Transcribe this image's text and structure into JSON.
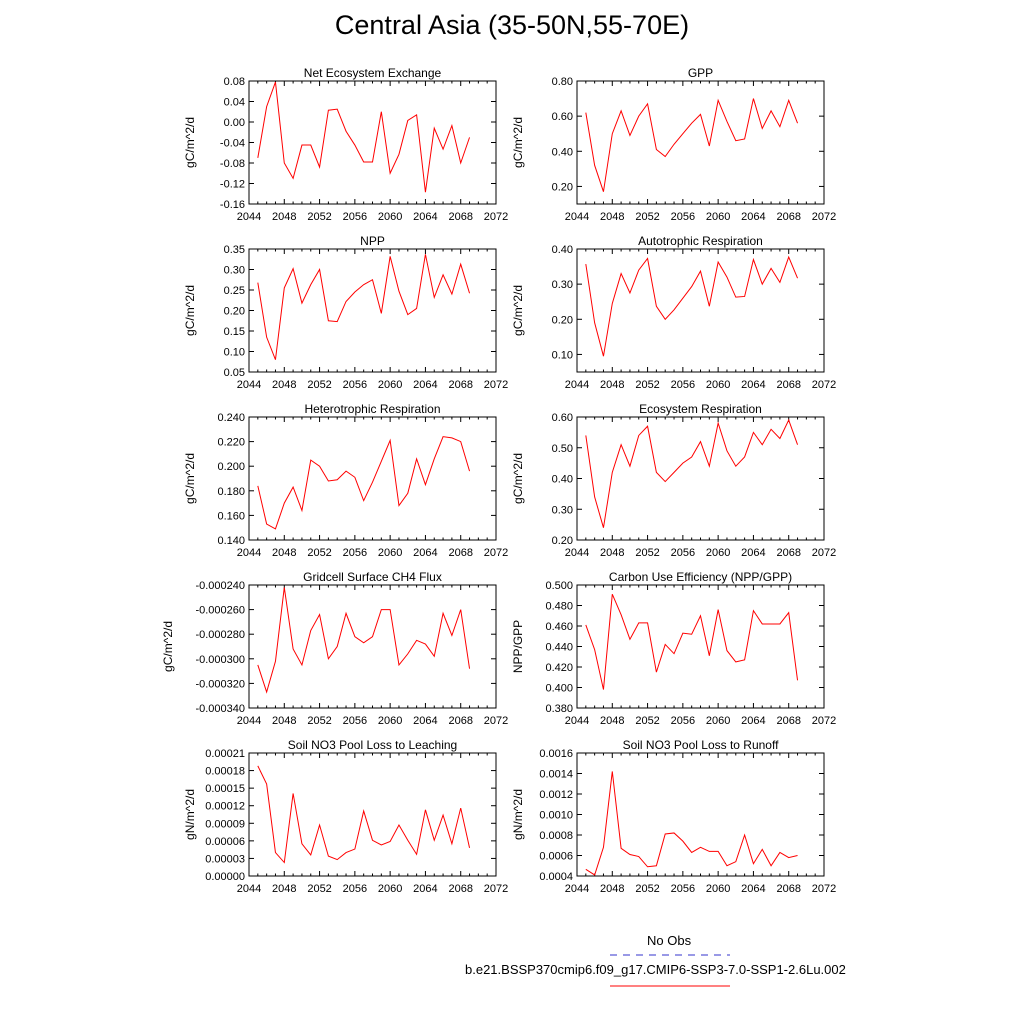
{
  "title": "Central Asia (35-50N,55-70E)",
  "colors": {
    "model_line": "#ff0000",
    "obs_line": "#3333cc",
    "axis": "#000000"
  },
  "legend": {
    "obs_label": "No Obs",
    "model_label": "b.e21.BSSP370cmip6.f09_g17.CMIP6-SSP3-7.0-SSP1-2.6Lu.002"
  },
  "chart_data": [
    {
      "type": "line",
      "title": "Net Ecosystem Exchange",
      "ylabel": "gC/m^2/d",
      "xlim": [
        2044,
        2072
      ],
      "xticks": [
        2044,
        2048,
        2052,
        2056,
        2060,
        2064,
        2068,
        2072
      ],
      "ylim": [
        -0.16,
        0.08
      ],
      "yticks": [
        0.08,
        0.04,
        0.0,
        -0.04,
        -0.08,
        -0.12,
        -0.16
      ],
      "ytick_labels": [
        "0.08",
        "0.04",
        "0.00",
        "-0.04",
        "-0.08",
        "-0.12",
        "-0.16"
      ],
      "x": [
        2045,
        2046,
        2047,
        2048,
        2049,
        2050,
        2051,
        2052,
        2053,
        2054,
        2055,
        2056,
        2057,
        2058,
        2059,
        2060,
        2061,
        2062,
        2063,
        2064,
        2065,
        2066,
        2067,
        2068,
        2069
      ],
      "series": [
        {
          "values": [
            -0.07,
            0.03,
            0.078,
            -0.08,
            -0.11,
            -0.045,
            -0.045,
            -0.088,
            0.023,
            0.025,
            -0.018,
            -0.045,
            -0.078,
            -0.078,
            0.02,
            -0.1,
            -0.063,
            0.003,
            0.014,
            -0.137,
            -0.012,
            -0.053,
            -0.007,
            -0.08,
            -0.03
          ]
        }
      ]
    },
    {
      "type": "line",
      "title": "GPP",
      "ylabel": "gC/m^2/d",
      "xlim": [
        2044,
        2072
      ],
      "xticks": [
        2044,
        2048,
        2052,
        2056,
        2060,
        2064,
        2068,
        2072
      ],
      "ylim": [
        0.1,
        0.8
      ],
      "yticks": [
        0.8,
        0.6,
        0.4,
        0.2
      ],
      "ytick_labels": [
        "0.80",
        "0.60",
        "0.40",
        "0.20"
      ],
      "x": [
        2045,
        2046,
        2047,
        2048,
        2049,
        2050,
        2051,
        2052,
        2053,
        2054,
        2055,
        2056,
        2057,
        2058,
        2059,
        2060,
        2061,
        2062,
        2063,
        2064,
        2065,
        2066,
        2067,
        2068,
        2069
      ],
      "series": [
        {
          "values": [
            0.62,
            0.32,
            0.17,
            0.5,
            0.63,
            0.49,
            0.6,
            0.67,
            0.41,
            0.37,
            0.44,
            0.5,
            0.56,
            0.61,
            0.43,
            0.69,
            0.57,
            0.46,
            0.47,
            0.7,
            0.53,
            0.63,
            0.54,
            0.69,
            0.56
          ]
        }
      ]
    },
    {
      "type": "line",
      "title": "NPP",
      "ylabel": "gC/m^2/d",
      "xlim": [
        2044,
        2072
      ],
      "xticks": [
        2044,
        2048,
        2052,
        2056,
        2060,
        2064,
        2068,
        2072
      ],
      "ylim": [
        0.05,
        0.35
      ],
      "yticks": [
        0.35,
        0.3,
        0.25,
        0.2,
        0.15,
        0.1,
        0.05
      ],
      "ytick_labels": [
        "0.35",
        "0.30",
        "0.25",
        "0.20",
        "0.15",
        "0.10",
        "0.05"
      ],
      "x": [
        2045,
        2046,
        2047,
        2048,
        2049,
        2050,
        2051,
        2052,
        2053,
        2054,
        2055,
        2056,
        2057,
        2058,
        2059,
        2060,
        2061,
        2062,
        2063,
        2064,
        2065,
        2066,
        2067,
        2068,
        2069
      ],
      "series": [
        {
          "values": [
            0.268,
            0.135,
            0.08,
            0.255,
            0.302,
            0.218,
            0.263,
            0.3,
            0.175,
            0.173,
            0.222,
            0.245,
            0.263,
            0.275,
            0.193,
            0.332,
            0.247,
            0.19,
            0.205,
            0.337,
            0.232,
            0.287,
            0.24,
            0.313,
            0.242
          ]
        }
      ]
    },
    {
      "type": "line",
      "title": "Autotrophic Respiration",
      "ylabel": "gC/m^2/d",
      "xlim": [
        2044,
        2072
      ],
      "xticks": [
        2044,
        2048,
        2052,
        2056,
        2060,
        2064,
        2068,
        2072
      ],
      "ylim": [
        0.05,
        0.4
      ],
      "yticks": [
        0.4,
        0.3,
        0.2,
        0.1
      ],
      "ytick_labels": [
        "0.40",
        "0.30",
        "0.20",
        "0.10"
      ],
      "x": [
        2045,
        2046,
        2047,
        2048,
        2049,
        2050,
        2051,
        2052,
        2053,
        2054,
        2055,
        2056,
        2057,
        2058,
        2059,
        2060,
        2061,
        2062,
        2063,
        2064,
        2065,
        2066,
        2067,
        2068,
        2069
      ],
      "series": [
        {
          "values": [
            0.357,
            0.19,
            0.095,
            0.245,
            0.33,
            0.275,
            0.34,
            0.373,
            0.237,
            0.2,
            0.227,
            0.26,
            0.293,
            0.337,
            0.237,
            0.363,
            0.32,
            0.263,
            0.265,
            0.37,
            0.3,
            0.345,
            0.305,
            0.377,
            0.317
          ]
        }
      ]
    },
    {
      "type": "line",
      "title": "Heterotrophic Respiration",
      "ylabel": "gC/m^2/d",
      "xlim": [
        2044,
        2072
      ],
      "xticks": [
        2044,
        2048,
        2052,
        2056,
        2060,
        2064,
        2068,
        2072
      ],
      "ylim": [
        0.14,
        0.24
      ],
      "yticks": [
        0.24,
        0.22,
        0.2,
        0.18,
        0.16,
        0.14
      ],
      "ytick_labels": [
        "0.240",
        "0.220",
        "0.200",
        "0.180",
        "0.160",
        "0.140"
      ],
      "x": [
        2045,
        2046,
        2047,
        2048,
        2049,
        2050,
        2051,
        2052,
        2053,
        2054,
        2055,
        2056,
        2057,
        2058,
        2059,
        2060,
        2061,
        2062,
        2063,
        2064,
        2065,
        2066,
        2067,
        2068,
        2069
      ],
      "series": [
        {
          "values": [
            0.184,
            0.153,
            0.149,
            0.17,
            0.183,
            0.164,
            0.205,
            0.2,
            0.188,
            0.189,
            0.196,
            0.191,
            0.172,
            0.187,
            0.204,
            0.221,
            0.168,
            0.178,
            0.206,
            0.185,
            0.206,
            0.224,
            0.223,
            0.22,
            0.196
          ]
        }
      ]
    },
    {
      "type": "line",
      "title": "Ecosystem Respiration",
      "ylabel": "gC/m^2/d",
      "xlim": [
        2044,
        2072
      ],
      "xticks": [
        2044,
        2048,
        2052,
        2056,
        2060,
        2064,
        2068,
        2072
      ],
      "ylim": [
        0.2,
        0.6
      ],
      "yticks": [
        0.6,
        0.5,
        0.4,
        0.3,
        0.2
      ],
      "ytick_labels": [
        "0.60",
        "0.50",
        "0.40",
        "0.30",
        "0.20"
      ],
      "x": [
        2045,
        2046,
        2047,
        2048,
        2049,
        2050,
        2051,
        2052,
        2053,
        2054,
        2055,
        2056,
        2057,
        2058,
        2059,
        2060,
        2061,
        2062,
        2063,
        2064,
        2065,
        2066,
        2067,
        2068,
        2069
      ],
      "series": [
        {
          "values": [
            0.54,
            0.34,
            0.24,
            0.42,
            0.51,
            0.44,
            0.54,
            0.57,
            0.42,
            0.39,
            0.42,
            0.45,
            0.47,
            0.52,
            0.44,
            0.58,
            0.49,
            0.44,
            0.47,
            0.55,
            0.51,
            0.56,
            0.53,
            0.59,
            0.51
          ]
        }
      ]
    },
    {
      "type": "line",
      "title": "Gridcell Surface CH4 Flux",
      "ylabel": "gC/m^2/d",
      "xlim": [
        2044,
        2072
      ],
      "xticks": [
        2044,
        2048,
        2052,
        2056,
        2060,
        2064,
        2068,
        2072
      ],
      "ylim": [
        -0.00034,
        -0.00024
      ],
      "yticks": [
        -0.00024,
        -0.00026,
        -0.00028,
        -0.0003,
        -0.00032,
        -0.00034
      ],
      "ytick_labels": [
        "-0.000240",
        "-0.000260",
        "-0.000280",
        "-0.000300",
        "-0.000320",
        "-0.000340"
      ],
      "x": [
        2045,
        2046,
        2047,
        2048,
        2049,
        2050,
        2051,
        2052,
        2053,
        2054,
        2055,
        2056,
        2057,
        2058,
        2059,
        2060,
        2061,
        2062,
        2063,
        2064,
        2065,
        2066,
        2067,
        2068,
        2069
      ],
      "series": [
        {
          "values": [
            -0.000305,
            -0.000327,
            -0.000302,
            -0.000242,
            -0.000292,
            -0.000305,
            -0.000277,
            -0.000264,
            -0.0003,
            -0.00029,
            -0.000263,
            -0.000282,
            -0.000287,
            -0.000282,
            -0.00026,
            -0.00026,
            -0.000305,
            -0.000296,
            -0.000285,
            -0.000288,
            -0.000298,
            -0.000263,
            -0.000281,
            -0.00026,
            -0.000308
          ]
        }
      ]
    },
    {
      "type": "line",
      "title": "Carbon Use Efficiency (NPP/GPP)",
      "ylabel": "NPP/GPP",
      "xlim": [
        2044,
        2072
      ],
      "xticks": [
        2044,
        2048,
        2052,
        2056,
        2060,
        2064,
        2068,
        2072
      ],
      "ylim": [
        0.38,
        0.5
      ],
      "yticks": [
        0.5,
        0.48,
        0.46,
        0.44,
        0.42,
        0.4,
        0.38
      ],
      "ytick_labels": [
        "0.500",
        "0.480",
        "0.460",
        "0.440",
        "0.420",
        "0.400",
        "0.380"
      ],
      "x": [
        2045,
        2046,
        2047,
        2048,
        2049,
        2050,
        2051,
        2052,
        2053,
        2054,
        2055,
        2056,
        2057,
        2058,
        2059,
        2060,
        2061,
        2062,
        2063,
        2064,
        2065,
        2066,
        2067,
        2068,
        2069
      ],
      "series": [
        {
          "values": [
            0.461,
            0.437,
            0.398,
            0.491,
            0.471,
            0.447,
            0.463,
            0.463,
            0.415,
            0.442,
            0.433,
            0.453,
            0.452,
            0.47,
            0.431,
            0.476,
            0.436,
            0.425,
            0.427,
            0.475,
            0.462,
            0.462,
            0.462,
            0.473,
            0.407
          ]
        }
      ]
    },
    {
      "type": "line",
      "title": "Soil NO3 Pool Loss to Leaching",
      "ylabel": "gN/m^2/d",
      "xlim": [
        2044,
        2072
      ],
      "xticks": [
        2044,
        2048,
        2052,
        2056,
        2060,
        2064,
        2068,
        2072
      ],
      "ylim": [
        0,
        0.00021
      ],
      "yticks": [
        0.00021,
        0.00018,
        0.00015,
        0.00012,
        9e-05,
        6e-05,
        3e-05,
        0
      ],
      "ytick_labels": [
        "0.00021",
        "0.00018",
        "0.00015",
        "0.00012",
        "0.00009",
        "0.00006",
        "0.00003",
        "0.00000"
      ],
      "x": [
        2045,
        2046,
        2047,
        2048,
        2049,
        2050,
        2051,
        2052,
        2053,
        2054,
        2055,
        2056,
        2057,
        2058,
        2059,
        2060,
        2061,
        2062,
        2063,
        2064,
        2065,
        2066,
        2067,
        2068,
        2069
      ],
      "series": [
        {
          "values": [
            0.000188,
            0.000157,
            4e-05,
            2.3e-05,
            0.000141,
            5.5e-05,
            3.6e-05,
            8.7e-05,
            3.4e-05,
            2.8e-05,
            4e-05,
            4.6e-05,
            0.000111,
            6.1e-05,
            5.3e-05,
            5.9e-05,
            8.7e-05,
            6.1e-05,
            3.7e-05,
            0.000113,
            6.1e-05,
            0.000104,
            5.5e-05,
            0.000116,
            4.8e-05
          ]
        }
      ]
    },
    {
      "type": "line",
      "title": "Soil NO3 Pool Loss to Runoff",
      "ylabel": "gN/m^2/d",
      "xlim": [
        2044,
        2072
      ],
      "xticks": [
        2044,
        2048,
        2052,
        2056,
        2060,
        2064,
        2068,
        2072
      ],
      "ylim": [
        0.0004,
        0.0016
      ],
      "yticks": [
        0.0016,
        0.0014,
        0.0012,
        0.001,
        0.0008,
        0.0006,
        0.0004
      ],
      "ytick_labels": [
        "0.0016",
        "0.0014",
        "0.0012",
        "0.0010",
        "0.0008",
        "0.0006",
        "0.0004"
      ],
      "x": [
        2045,
        2046,
        2047,
        2048,
        2049,
        2050,
        2051,
        2052,
        2053,
        2054,
        2055,
        2056,
        2057,
        2058,
        2059,
        2060,
        2061,
        2062,
        2063,
        2064,
        2065,
        2066,
        2067,
        2068,
        2069
      ],
      "series": [
        {
          "values": [
            0.000465,
            0.00041,
            0.00068,
            0.00142,
            0.00067,
            0.00061,
            0.00059,
            0.00049,
            0.0005,
            0.00081,
            0.00082,
            0.00074,
            0.00063,
            0.00068,
            0.00064,
            0.00064,
            0.0005,
            0.00054,
            0.0008,
            0.00052,
            0.00066,
            0.0005,
            0.00063,
            0.00058,
            0.0006
          ]
        }
      ]
    }
  ]
}
